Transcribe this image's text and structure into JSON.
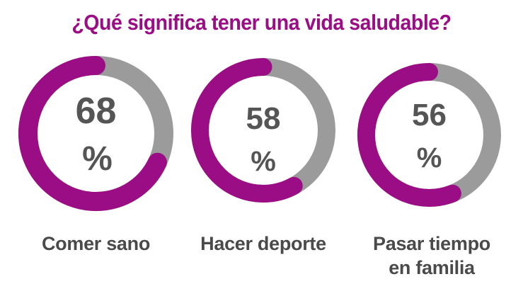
{
  "title": "¿Qué significa tener una vida saludable?",
  "colors": {
    "accent": "#9b0d84",
    "track": "#9b9b9b",
    "text": "#555555",
    "label": "#4a4a4a"
  },
  "chart_data": {
    "type": "pie",
    "title": "¿Qué significa tener una vida saludable?",
    "categories": [
      "Comer sano",
      "Hacer deporte",
      "Pasar tiempo en familia"
    ],
    "values": [
      68,
      58,
      56
    ],
    "unit": "%",
    "value_labels": [
      {
        "number": "68",
        "sign": "%"
      },
      {
        "number": "58",
        "sign": "%"
      },
      {
        "number": "56",
        "sign": "%"
      }
    ],
    "labels": [
      [
        "Comer sano"
      ],
      [
        "Hacer deporte"
      ],
      [
        "Pasar tiempo",
        "en familia"
      ]
    ]
  }
}
